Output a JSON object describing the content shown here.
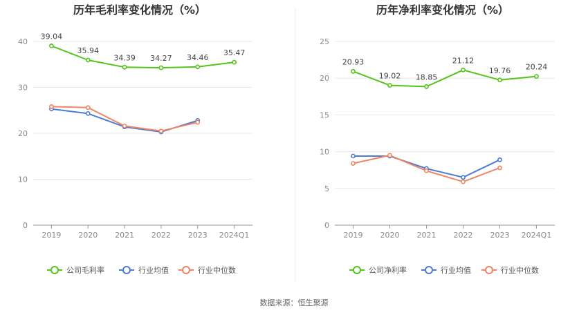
{
  "source_text": "数据来源：恒生聚源",
  "chart_data": [
    {
      "type": "line",
      "title": "历年毛利率变化情况（%）",
      "categories": [
        "2019",
        "2020",
        "2021",
        "2022",
        "2023",
        "2024Q1"
      ],
      "ylim": [
        0,
        40
      ],
      "yticks": [
        "0",
        "10",
        "20",
        "30",
        "40"
      ],
      "grid": true,
      "legend_position": "bottom",
      "series": [
        {
          "name": "公司毛利率",
          "color": "#52c41a",
          "values": [
            39.04,
            35.94,
            34.39,
            34.27,
            34.46,
            35.47
          ],
          "labels": [
            "39.04",
            "35.94",
            "34.39",
            "34.27",
            "34.46",
            "35.47"
          ]
        },
        {
          "name": "行业均值",
          "color": "#4b7bd6",
          "values": [
            25.3,
            24.3,
            21.4,
            20.3,
            22.8,
            null
          ]
        },
        {
          "name": "行业中位数",
          "color": "#f08463",
          "values": [
            25.8,
            25.6,
            21.6,
            20.5,
            22.4,
            null
          ]
        }
      ]
    },
    {
      "type": "line",
      "title": "历年净利率变化情况（%）",
      "categories": [
        "2019",
        "2020",
        "2021",
        "2022",
        "2023",
        "2024Q1"
      ],
      "ylim": [
        0,
        25
      ],
      "yticks": [
        "0",
        "5",
        "10",
        "15",
        "20",
        "25"
      ],
      "grid": true,
      "legend_position": "bottom",
      "series": [
        {
          "name": "公司净利率",
          "color": "#52c41a",
          "values": [
            20.93,
            19.02,
            18.85,
            21.12,
            19.76,
            20.24
          ],
          "labels": [
            "20.93",
            "19.02",
            "18.85",
            "21.12",
            "19.76",
            "20.24"
          ]
        },
        {
          "name": "行业均值",
          "color": "#4b7bd6",
          "values": [
            9.4,
            9.4,
            7.7,
            6.5,
            8.9,
            null
          ]
        },
        {
          "name": "行业中位数",
          "color": "#f08463",
          "values": [
            8.4,
            9.5,
            7.4,
            5.9,
            7.8,
            null
          ]
        }
      ]
    }
  ]
}
